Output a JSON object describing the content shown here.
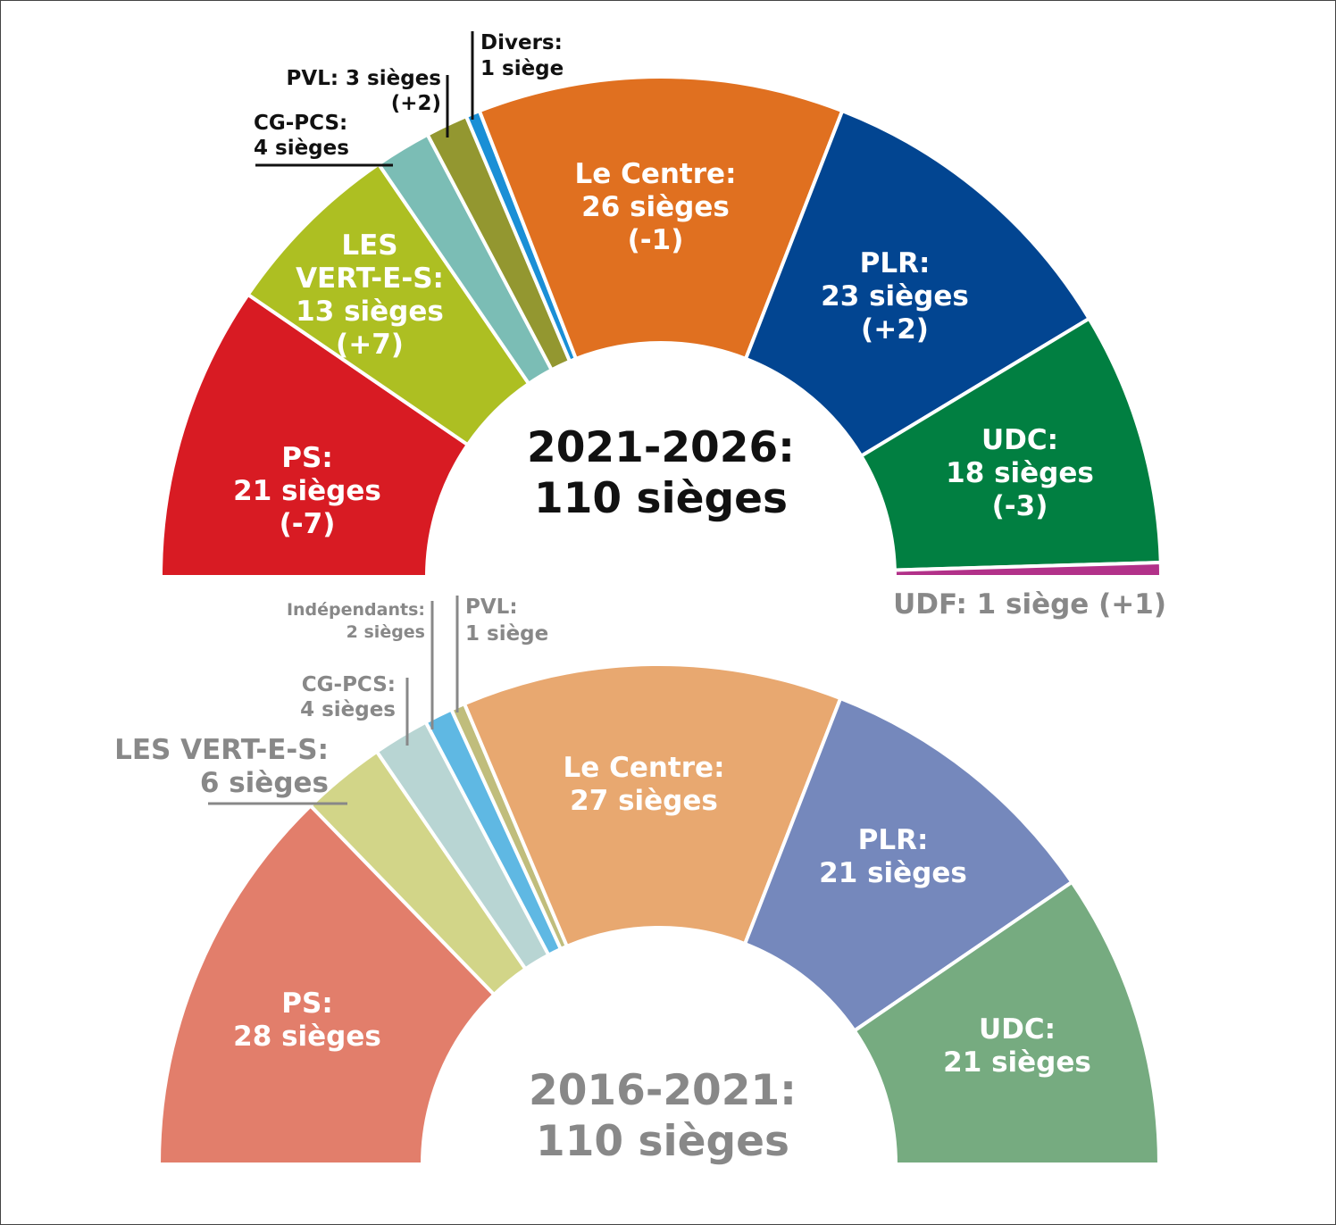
{
  "chart_data": [
    {
      "type": "parliament-semicircle",
      "period": "2021-2026:",
      "total": "110 sièges",
      "parties": [
        {
          "name": "PS:",
          "seats": 21,
          "seats_text": "21 sièges",
          "change": "(-7)",
          "color": "#d81b23"
        },
        {
          "name": "LES VERT-E-S:",
          "name_lines": [
            "LES",
            "VERT-E-S:"
          ],
          "seats": 13,
          "seats_text": "13 sièges",
          "change": "(+7)",
          "color": "#adbf22"
        },
        {
          "name": "CG-PCS:",
          "seats": 4,
          "seats_text": "4 sièges",
          "change": "",
          "color": "#7bbdb5"
        },
        {
          "name": "PVL:",
          "seats": 3,
          "seats_text": "3 sièges",
          "change": "(+2)",
          "color": "#939730"
        },
        {
          "name": "Divers:",
          "seats": 1,
          "seats_text": "1 siège",
          "change": "",
          "color": "#1a8fd6"
        },
        {
          "name": "Le Centre:",
          "seats": 26,
          "seats_text": "26 sièges",
          "change": "(-1)",
          "color": "#e07020"
        },
        {
          "name": "PLR:",
          "seats": 23,
          "seats_text": "23 sièges",
          "change": "(+2)",
          "color": "#024591"
        },
        {
          "name": "UDC:",
          "seats": 18,
          "seats_text": "18 sièges",
          "change": "(-3)",
          "color": "#017f41"
        },
        {
          "name": "UDF:",
          "seats": 1,
          "seats_text": "1 siège",
          "change": "(+1)",
          "color": "#b23189"
        }
      ]
    },
    {
      "type": "parliament-semicircle",
      "period": "2016-2021:",
      "total": "110 sièges",
      "parties": [
        {
          "name": "PS:",
          "seats": 28,
          "seats_text": "28 sièges",
          "color": "#e27e6b"
        },
        {
          "name": "LES VERT-E-S:",
          "seats": 6,
          "seats_text": "6 sièges",
          "color": "#d2d588"
        },
        {
          "name": "CG-PCS:",
          "seats": 4,
          "seats_text": "4 sièges",
          "color": "#b8d5d3"
        },
        {
          "name": "Indépendants:",
          "seats": 2,
          "seats_text": "2 sièges",
          "color": "#5fb8e3"
        },
        {
          "name": "PVL:",
          "seats": 1,
          "seats_text": "1 siège",
          "color": "#c0bd7c"
        },
        {
          "name": "Le Centre:",
          "seats": 27,
          "seats_text": "27 sièges",
          "color": "#e8a870"
        },
        {
          "name": "PLR:",
          "seats": 21,
          "seats_text": "21 sièges",
          "color": "#7588bc"
        },
        {
          "name": "UDC:",
          "seats": 21,
          "seats_text": "21 sièges",
          "color": "#76ab80"
        }
      ]
    }
  ],
  "colors": {
    "top_label": "#ffffff",
    "top_outside_label": "#111111",
    "bottom_outside_label": "#888888",
    "top_center": "#111111",
    "bottom_center": "#888888",
    "udf_label": "#888888"
  }
}
